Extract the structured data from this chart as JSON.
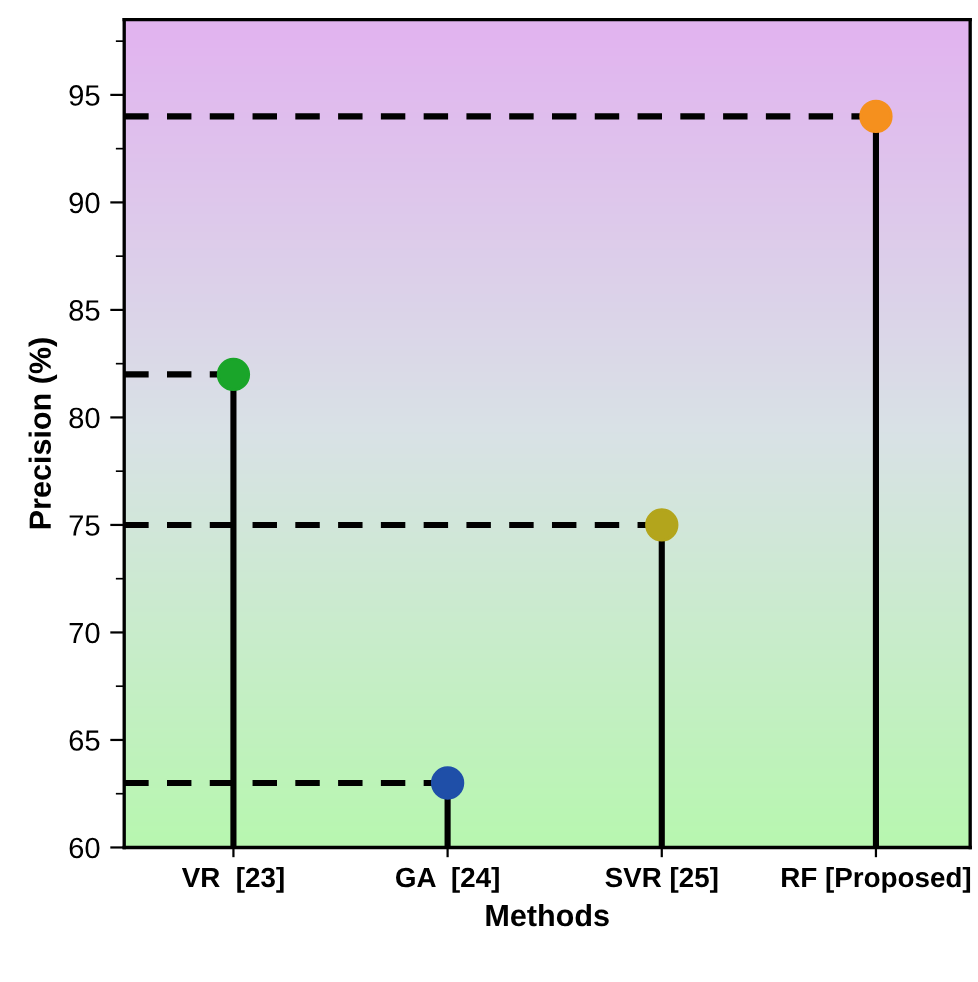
{
  "chart_data": {
    "type": "lollipop",
    "xlabel": "Methods",
    "ylabel": "Precision (%)",
    "categories": [
      "VR  [23]",
      "GA  [24]",
      "SVR [25]",
      "RF [Proposed]"
    ],
    "values": [
      82,
      63,
      75,
      94
    ],
    "colors": [
      "#1aa52a",
      "#1f4fa8",
      "#b3a51c",
      "#f5901e"
    ],
    "ylim": [
      60,
      98.5
    ],
    "yticks": [
      60,
      65,
      70,
      75,
      80,
      85,
      90,
      95
    ],
    "marker": "circle",
    "ref_lines": [
      {
        "axis": "y",
        "value": 94,
        "color": "#000000",
        "line_style": "dashed"
      },
      {
        "axis": "y",
        "value": 82,
        "color": "#000000",
        "line_style": "dashed"
      },
      {
        "axis": "y",
        "value": 75,
        "color": "#000000",
        "line_style": "dashed"
      },
      {
        "axis": "y",
        "value": 63,
        "color": "#000000",
        "line_style": "dashed"
      }
    ]
  }
}
